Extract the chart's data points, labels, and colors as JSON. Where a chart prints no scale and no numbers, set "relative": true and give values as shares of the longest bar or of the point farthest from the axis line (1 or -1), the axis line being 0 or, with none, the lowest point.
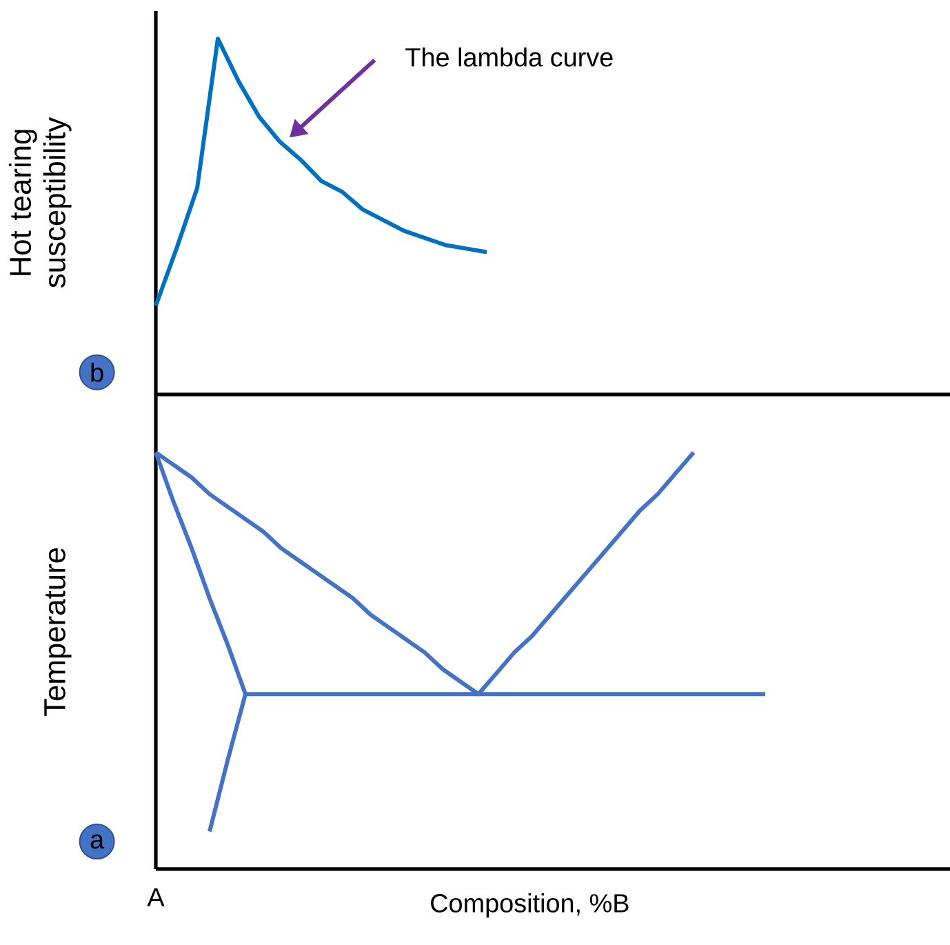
{
  "chart_data": [
    {
      "type": "line",
      "ylabel": "Hot tearing susceptibility",
      "relative": true,
      "annotations": [
        "The lambda curve",
        "b"
      ],
      "categories": [
        null,
        null,
        null,
        null,
        null,
        null,
        null,
        null,
        null,
        null,
        null,
        null,
        null,
        null,
        null,
        null,
        null
      ],
      "series": [
        {
          "color": "#0070c0",
          "values": [
            0.25,
            0.41,
            0.58,
            1,
            0.88,
            0.78,
            0.71,
            0.66,
            0.6,
            0.57,
            0.52,
            0.49,
            0.46,
            0.44,
            0.42,
            0.41,
            0.4
          ]
        }
      ]
    },
    {
      "type": "line",
      "ylabel": "Temperature",
      "xlabel": "Composition, %B",
      "relative": true,
      "annotations": [
        "a",
        "A"
      ],
      "categories": [
        null,
        null,
        null,
        null,
        null,
        null,
        null,
        null,
        null,
        null,
        null,
        null,
        null,
        null,
        null,
        null,
        null,
        null,
        null,
        null,
        null,
        null,
        null,
        null,
        null,
        null,
        null,
        null,
        null,
        null,
        null,
        null,
        null,
        null,
        null
      ],
      "series": [
        {
          "color": "#4472c4",
          "values": [
            1,
            0.97,
            0.94,
            0.9,
            0.87,
            0.84,
            0.81,
            0.77,
            0.74,
            0.71,
            0.68,
            0.65,
            0.61,
            0.58,
            0.55,
            0.52,
            0.48,
            0.45,
            0.42,
            0.47,
            0.52,
            0.56,
            0.61,
            0.66,
            0.71,
            0.76,
            0.81,
            0.86,
            0.9,
            0.95,
            1,
            null,
            null,
            null,
            null
          ]
        },
        {
          "color": "#4472c4",
          "values": [
            1,
            0.88,
            0.77,
            0.65,
            0.54,
            0.42,
            null,
            null,
            null,
            null,
            null,
            null,
            null,
            null,
            null,
            null,
            null,
            null,
            null,
            null,
            null,
            null,
            null,
            null,
            null,
            null,
            null,
            null,
            null,
            null,
            null,
            null,
            null,
            null,
            null
          ]
        },
        {
          "color": "#4472c4",
          "values": [
            null,
            null,
            null,
            0.09,
            0.26,
            0.42,
            null,
            null,
            null,
            null,
            null,
            null,
            null,
            null,
            null,
            null,
            null,
            null,
            null,
            null,
            null,
            null,
            null,
            null,
            null,
            null,
            null,
            null,
            null,
            null,
            null,
            null,
            null,
            null,
            null
          ]
        },
        {
          "color": "#4472c4",
          "values": [
            null,
            null,
            null,
            null,
            null,
            0.42,
            0.42,
            0.42,
            0.42,
            0.42,
            0.42,
            0.42,
            0.42,
            0.42,
            0.42,
            0.42,
            0.42,
            0.42,
            0.42,
            0.42,
            0.42,
            0.42,
            0.42,
            0.42,
            0.42,
            0.42,
            0.42,
            0.42,
            0.42,
            0.42,
            0.42,
            0.42,
            0.42,
            0.42,
            0.42
          ]
        }
      ]
    }
  ]
}
